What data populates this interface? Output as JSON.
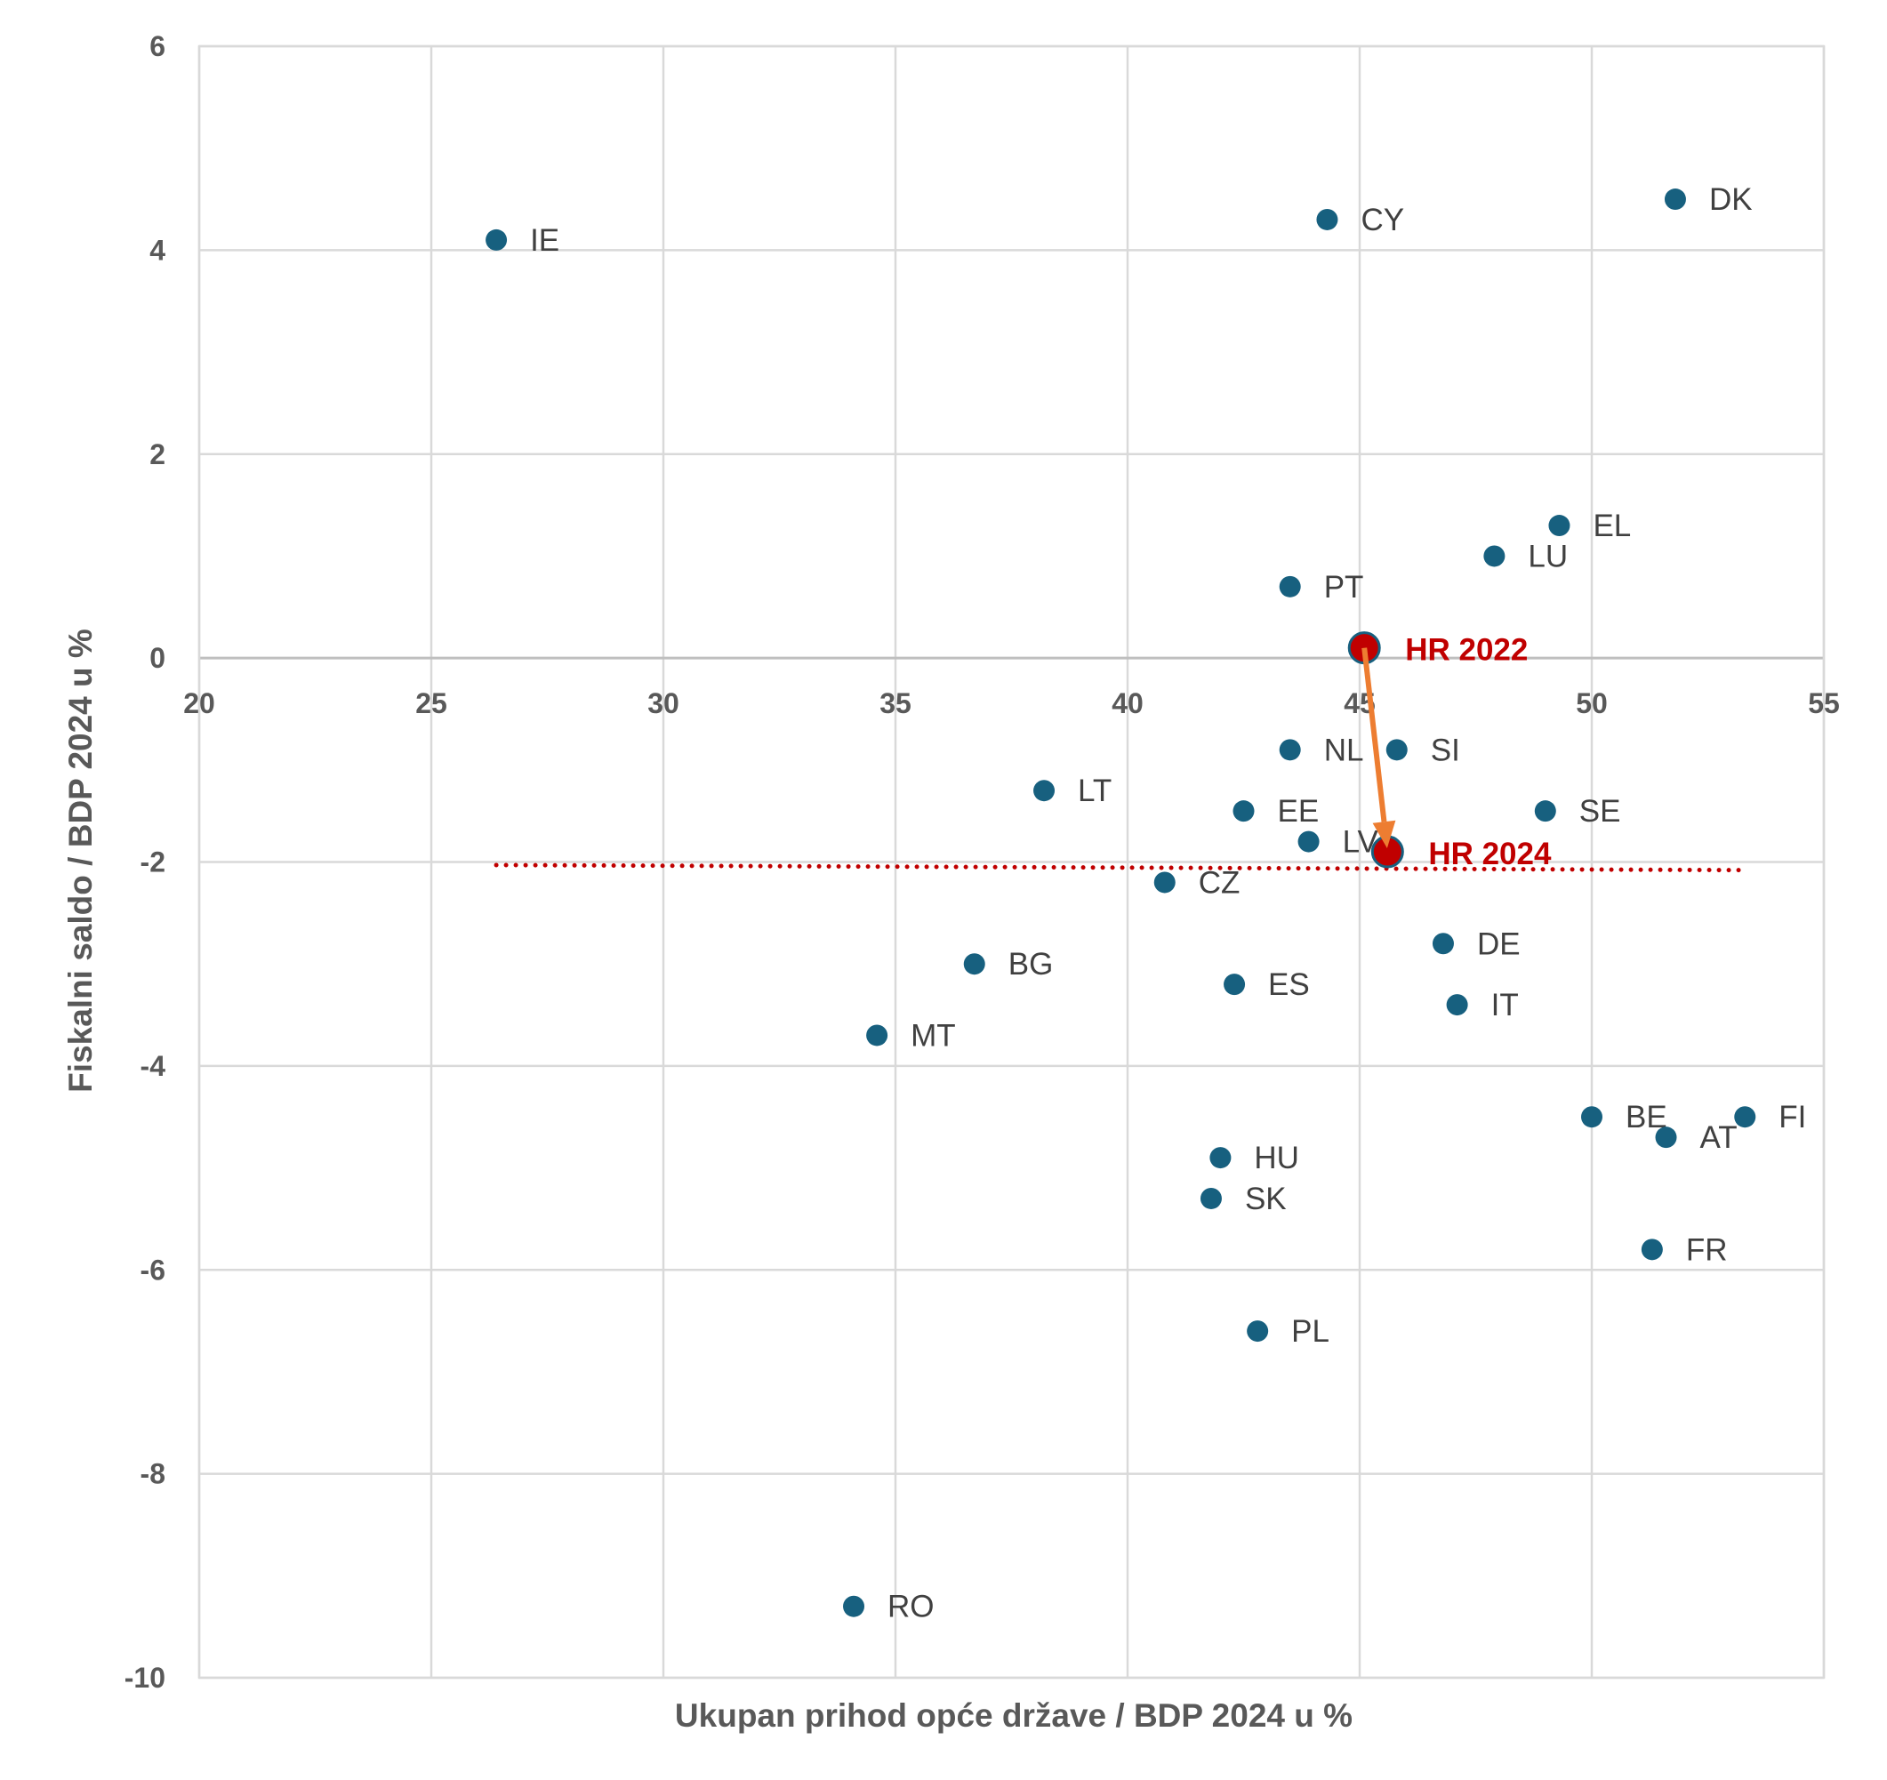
{
  "chart_data": {
    "type": "scatter",
    "xlabel": "Ukupan prihod opće države / BDP 2024 u %",
    "ylabel": "Fiskalni saldo / BDP 2024 u %",
    "xlim": [
      20,
      55
    ],
    "ylim": [
      -10,
      6
    ],
    "xticks": [
      "20",
      "25",
      "30",
      "35",
      "40",
      "45",
      "50",
      "55"
    ],
    "yticks": [
      "6",
      "4",
      "2",
      "0",
      "-2",
      "-4",
      "-6",
      "-8",
      "-10"
    ],
    "grid": true,
    "colors": {
      "points": "#17607f",
      "highlight": "#c00000",
      "arrow": "#ed7d31",
      "trend": "#c00000",
      "grid": "#d9d9d9"
    },
    "points": [
      {
        "label": "IE",
        "x": 26.4,
        "y": 4.1
      },
      {
        "label": "CY",
        "x": 44.3,
        "y": 4.3
      },
      {
        "label": "DK",
        "x": 51.8,
        "y": 4.5
      },
      {
        "label": "EL",
        "x": 49.3,
        "y": 1.3
      },
      {
        "label": "LU",
        "x": 47.9,
        "y": 1.0
      },
      {
        "label": "PT",
        "x": 43.5,
        "y": 0.7
      },
      {
        "label": "NL",
        "x": 43.5,
        "y": -0.9
      },
      {
        "label": "SI",
        "x": 45.8,
        "y": -0.9
      },
      {
        "label": "LT",
        "x": 38.2,
        "y": -1.3
      },
      {
        "label": "EE",
        "x": 42.5,
        "y": -1.5
      },
      {
        "label": "SE",
        "x": 49.0,
        "y": -1.5
      },
      {
        "label": "LV",
        "x": 43.9,
        "y": -1.8
      },
      {
        "label": "CZ",
        "x": 40.8,
        "y": -2.2
      },
      {
        "label": "DE",
        "x": 46.8,
        "y": -2.8
      },
      {
        "label": "BG",
        "x": 36.7,
        "y": -3.0
      },
      {
        "label": "ES",
        "x": 42.3,
        "y": -3.2
      },
      {
        "label": "IT",
        "x": 47.1,
        "y": -3.4
      },
      {
        "label": "MT",
        "x": 34.6,
        "y": -3.7
      },
      {
        "label": "BE",
        "x": 50.0,
        "y": -4.5
      },
      {
        "label": "FI",
        "x": 53.3,
        "y": -4.5
      },
      {
        "label": "AT",
        "x": 51.6,
        "y": -4.7
      },
      {
        "label": "HU",
        "x": 42.0,
        "y": -4.9
      },
      {
        "label": "SK",
        "x": 41.8,
        "y": -5.3
      },
      {
        "label": "FR",
        "x": 51.3,
        "y": -5.8
      },
      {
        "label": "PL",
        "x": 42.8,
        "y": -6.6
      },
      {
        "label": "RO",
        "x": 34.1,
        "y": -9.3
      }
    ],
    "highlight": [
      {
        "label": "HR 2022",
        "x": 45.1,
        "y": 0.1
      },
      {
        "label": "HR 2024",
        "x": 45.6,
        "y": -1.9
      }
    ],
    "trendline": {
      "x": [
        26.4,
        53.2
      ],
      "y": [
        -2.03,
        -2.08
      ],
      "style": "dotted"
    }
  }
}
